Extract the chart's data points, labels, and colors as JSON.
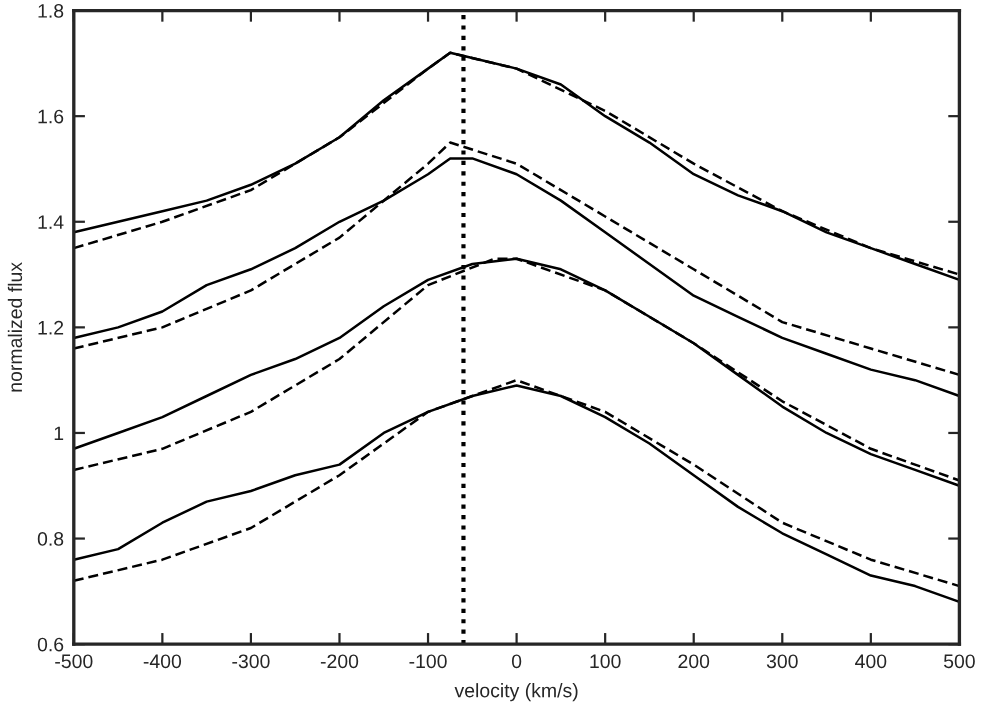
{
  "chart_data": {
    "type": "line",
    "xlabel": "velocity (km/s)",
    "ylabel": "normalized flux",
    "xlim": [
      -500,
      500
    ],
    "xticks": [
      -500,
      -400,
      -300,
      -200,
      -100,
      0,
      100,
      200,
      300,
      400,
      500
    ],
    "ylim": [
      0.6,
      1.8
    ],
    "yticks": [
      0.6,
      0.8,
      {
        "value": 1.0,
        "label": "1"
      },
      1.2,
      1.4,
      1.6,
      1.8
    ],
    "grid": false,
    "legend": false,
    "series": [
      {
        "color": "#000000",
        "line_style": "solid",
        "x": [
          -500,
          -450,
          -400,
          -350,
          -300,
          -250,
          -200,
          -150,
          -100,
          -75,
          -50,
          0,
          50,
          100,
          150,
          200,
          250,
          300,
          350,
          400,
          450,
          500
        ],
        "values": [
          1.38,
          1.4,
          1.42,
          1.44,
          1.47,
          1.51,
          1.56,
          1.63,
          1.69,
          1.72,
          1.71,
          1.69,
          1.66,
          1.6,
          1.55,
          1.49,
          1.45,
          1.42,
          1.38,
          1.35,
          1.32,
          1.29
        ]
      },
      {
        "color": "#000000",
        "line_style": "dashed",
        "x": [
          -500,
          -400,
          -300,
          -200,
          -100,
          -75,
          0,
          100,
          200,
          300,
          400,
          500
        ],
        "values": [
          1.35,
          1.4,
          1.46,
          1.56,
          1.69,
          1.72,
          1.69,
          1.61,
          1.51,
          1.42,
          1.35,
          1.3
        ]
      },
      {
        "color": "#000000",
        "line_style": "solid",
        "x": [
          -500,
          -450,
          -400,
          -350,
          -300,
          -250,
          -200,
          -150,
          -100,
          -75,
          -50,
          0,
          50,
          100,
          150,
          200,
          250,
          300,
          350,
          400,
          450,
          500
        ],
        "values": [
          1.18,
          1.2,
          1.23,
          1.28,
          1.31,
          1.35,
          1.4,
          1.44,
          1.49,
          1.52,
          1.52,
          1.49,
          1.44,
          1.38,
          1.32,
          1.26,
          1.22,
          1.18,
          1.15,
          1.12,
          1.1,
          1.07
        ]
      },
      {
        "color": "#000000",
        "line_style": "dashed",
        "x": [
          -500,
          -400,
          -300,
          -200,
          -100,
          -75,
          0,
          100,
          200,
          300,
          400,
          500
        ],
        "values": [
          1.16,
          1.2,
          1.27,
          1.37,
          1.51,
          1.55,
          1.51,
          1.41,
          1.31,
          1.21,
          1.16,
          1.11
        ]
      },
      {
        "color": "#000000",
        "line_style": "solid",
        "x": [
          -500,
          -450,
          -400,
          -350,
          -300,
          -250,
          -200,
          -150,
          -100,
          -50,
          0,
          50,
          100,
          150,
          200,
          250,
          300,
          350,
          400,
          450,
          500
        ],
        "values": [
          0.97,
          1.0,
          1.03,
          1.07,
          1.11,
          1.14,
          1.18,
          1.24,
          1.29,
          1.32,
          1.33,
          1.31,
          1.27,
          1.22,
          1.17,
          1.11,
          1.05,
          1.0,
          0.96,
          0.93,
          0.9
        ]
      },
      {
        "color": "#000000",
        "line_style": "dashed",
        "x": [
          -500,
          -400,
          -300,
          -200,
          -100,
          -25,
          0,
          100,
          200,
          300,
          400,
          500
        ],
        "values": [
          0.93,
          0.97,
          1.04,
          1.14,
          1.28,
          1.33,
          1.33,
          1.27,
          1.17,
          1.06,
          0.97,
          0.91
        ]
      },
      {
        "color": "#000000",
        "line_style": "solid",
        "x": [
          -500,
          -450,
          -400,
          -350,
          -300,
          -250,
          -200,
          -150,
          -100,
          -50,
          0,
          50,
          100,
          150,
          200,
          250,
          300,
          350,
          400,
          450,
          500
        ],
        "values": [
          0.76,
          0.78,
          0.83,
          0.87,
          0.89,
          0.92,
          0.94,
          1.0,
          1.04,
          1.07,
          1.09,
          1.07,
          1.03,
          0.98,
          0.92,
          0.86,
          0.81,
          0.77,
          0.73,
          0.71,
          0.68
        ]
      },
      {
        "color": "#000000",
        "line_style": "dashed",
        "x": [
          -500,
          -400,
          -300,
          -200,
          -100,
          0,
          100,
          200,
          300,
          400,
          500
        ],
        "values": [
          0.72,
          0.76,
          0.82,
          0.92,
          1.04,
          1.1,
          1.04,
          0.94,
          0.83,
          0.76,
          0.71
        ]
      }
    ],
    "ref_lines": [
      {
        "axis": "x",
        "value": -60,
        "color": "#000000",
        "line_style": "dotted"
      }
    ]
  }
}
